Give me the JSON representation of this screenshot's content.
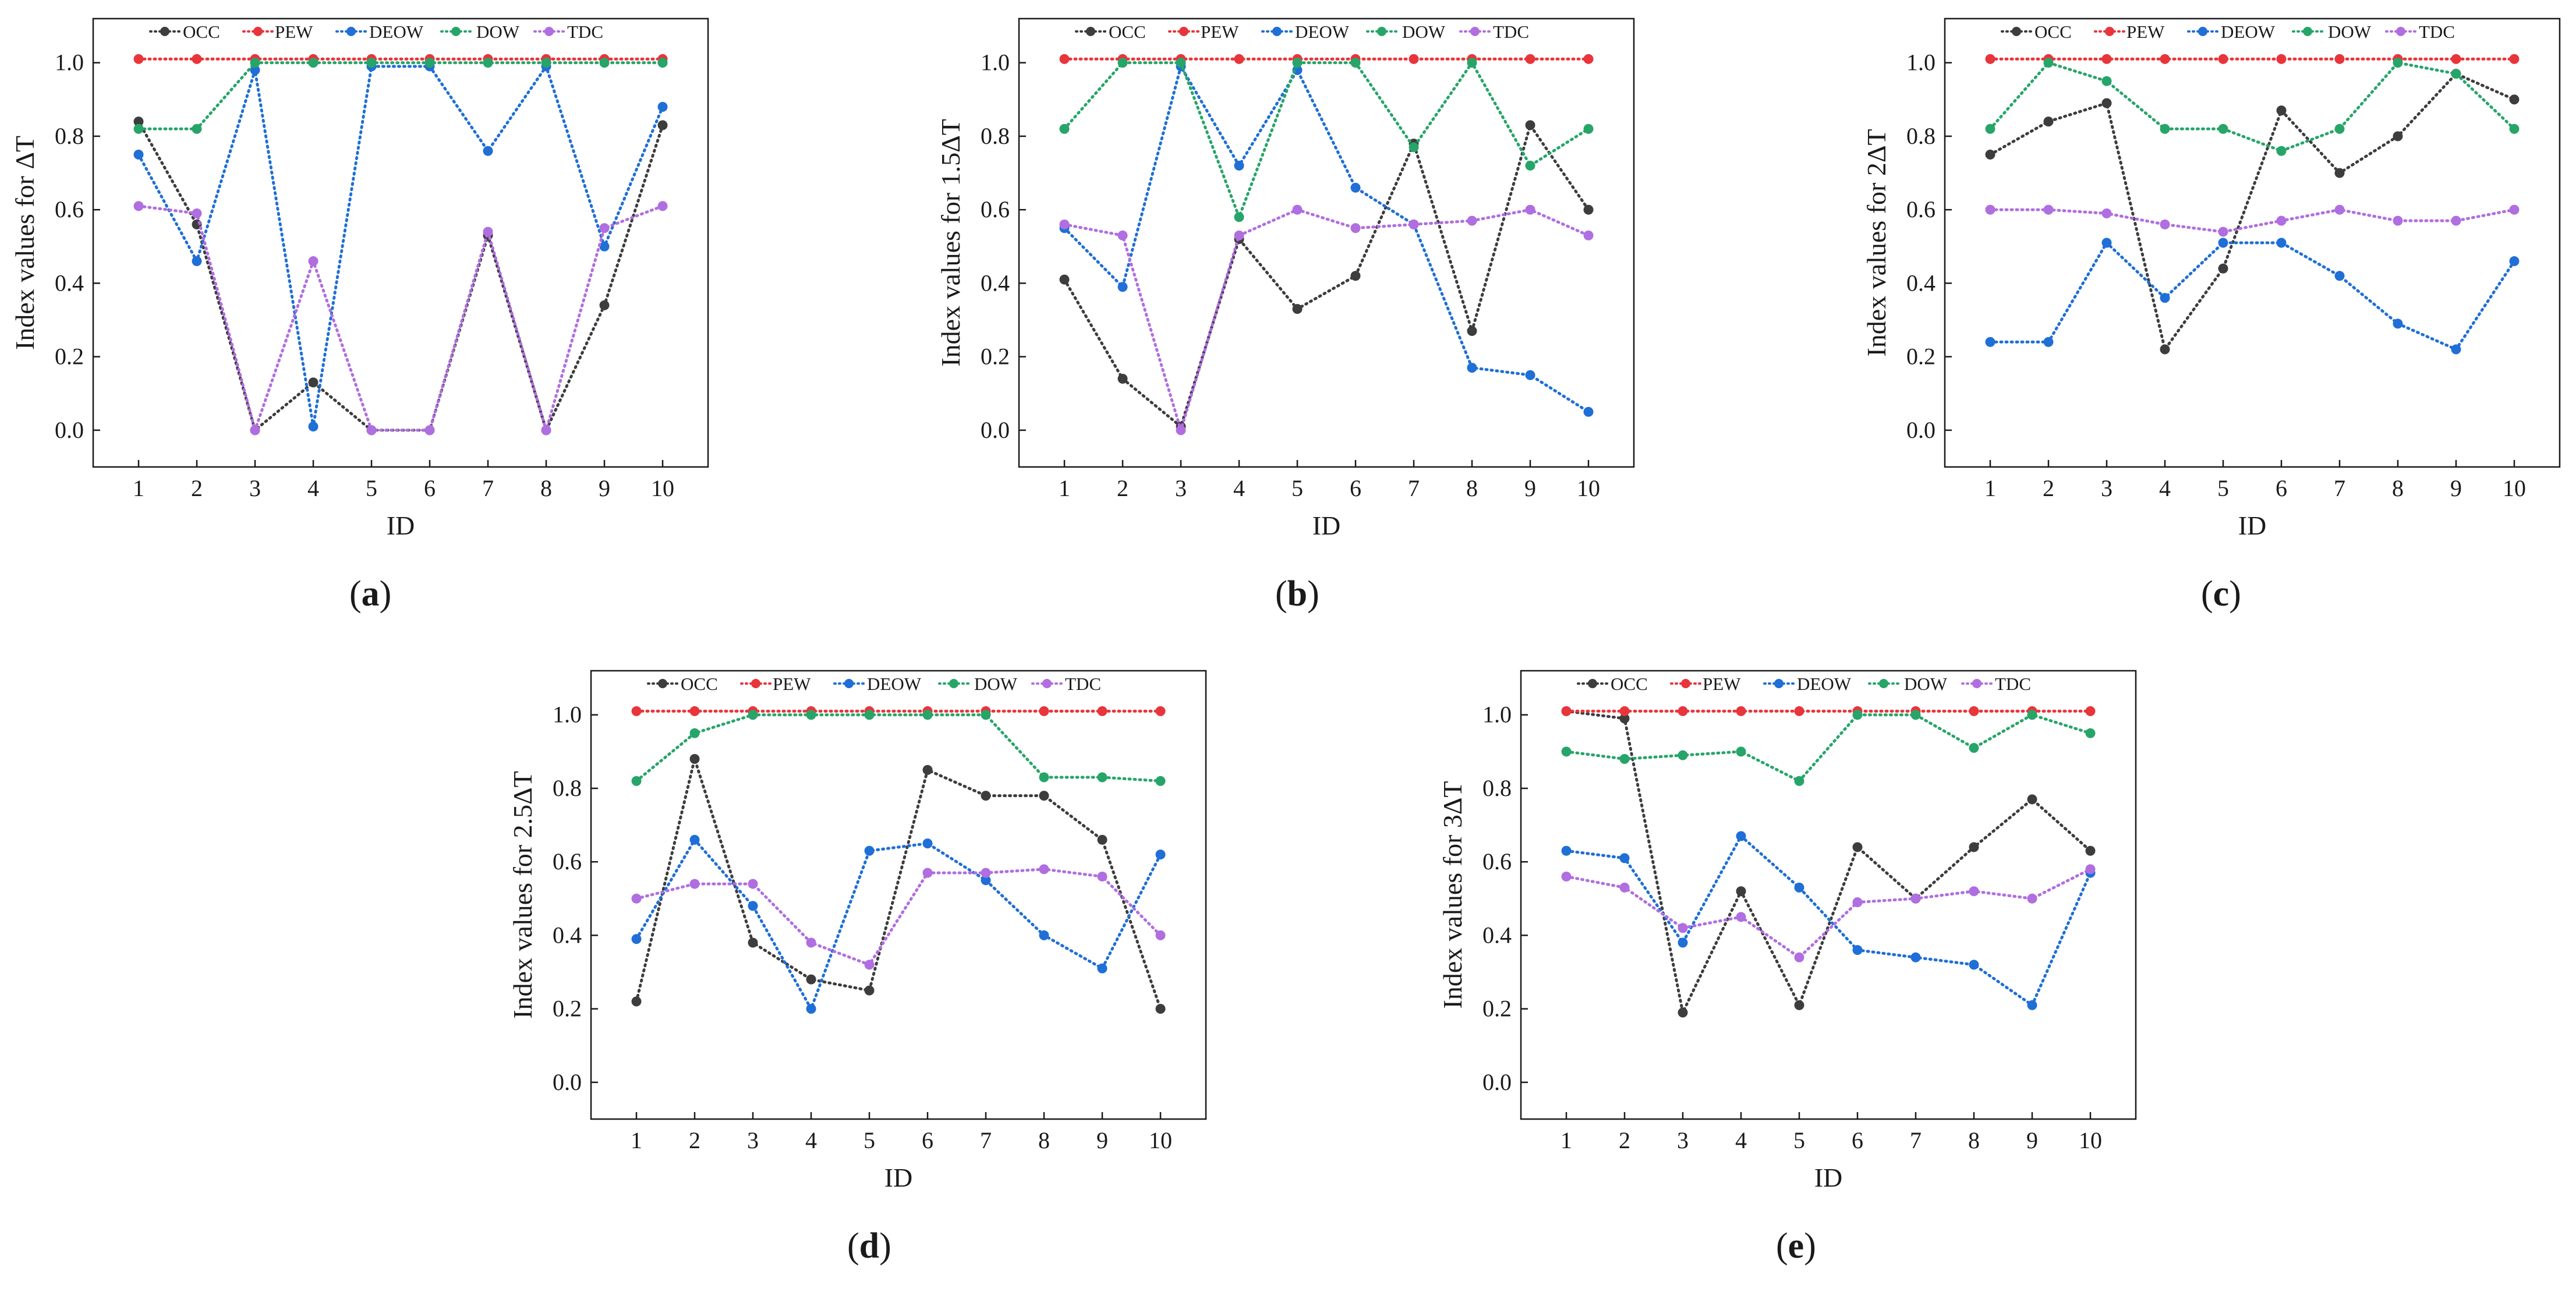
{
  "figure": {
    "panel_labels": [
      "(a)",
      "(b)",
      "(c)",
      "(d)",
      "(e)"
    ],
    "colors": {
      "OCC": "#3d3d3d",
      "PEW": "#e8353b",
      "DEOW": "#1f6fd6",
      "DOW": "#27a569",
      "TDC": "#b06ee0",
      "axis": "#1a1a1a"
    }
  },
  "chart_data": [
    {
      "type": "line",
      "panel_label": "(a)",
      "title": "",
      "xlabel": "ID",
      "ylabel": "Index values for ΔT",
      "categories": [
        "1",
        "2",
        "3",
        "4",
        "5",
        "6",
        "7",
        "8",
        "9",
        "10"
      ],
      "yticks": [
        "0.0",
        "0.2",
        "0.4",
        "0.6",
        "0.8",
        "1.0"
      ],
      "ylim": [
        -0.1,
        1.12
      ],
      "legend": "top",
      "series": [
        {
          "name": "OCC",
          "values": [
            0.84,
            0.56,
            0.0,
            0.13,
            0.0,
            0.0,
            0.53,
            0.0,
            0.34,
            0.83
          ]
        },
        {
          "name": "PEW",
          "values": [
            1.01,
            1.01,
            1.01,
            1.01,
            1.01,
            1.01,
            1.01,
            1.01,
            1.01,
            1.01
          ]
        },
        {
          "name": "DEOW",
          "values": [
            0.75,
            0.46,
            0.98,
            0.01,
            0.99,
            0.99,
            0.76,
            0.99,
            0.5,
            0.88
          ]
        },
        {
          "name": "DOW",
          "values": [
            0.82,
            0.82,
            1.0,
            1.0,
            1.0,
            1.0,
            1.0,
            1.0,
            1.0,
            1.0
          ]
        },
        {
          "name": "TDC",
          "values": [
            0.61,
            0.59,
            0.0,
            0.46,
            0.0,
            0.0,
            0.54,
            0.0,
            0.55,
            0.61
          ]
        }
      ]
    },
    {
      "type": "line",
      "panel_label": "(b)",
      "title": "",
      "xlabel": "ID",
      "ylabel": "Index values for 1.5ΔT",
      "categories": [
        "1",
        "2",
        "3",
        "4",
        "5",
        "6",
        "7",
        "8",
        "9",
        "10"
      ],
      "yticks": [
        "0.0",
        "0.2",
        "0.4",
        "0.6",
        "0.8",
        "1.0"
      ],
      "ylim": [
        -0.1,
        1.12
      ],
      "legend": "top",
      "series": [
        {
          "name": "OCC",
          "values": [
            0.41,
            0.14,
            0.01,
            0.52,
            0.33,
            0.42,
            0.78,
            0.27,
            0.83,
            0.6
          ]
        },
        {
          "name": "PEW",
          "values": [
            1.01,
            1.01,
            1.01,
            1.01,
            1.01,
            1.01,
            1.01,
            1.01,
            1.01,
            1.01
          ]
        },
        {
          "name": "DEOW",
          "values": [
            0.55,
            0.39,
            0.99,
            0.72,
            0.98,
            0.66,
            0.56,
            0.17,
            0.15,
            0.05
          ]
        },
        {
          "name": "DOW",
          "values": [
            0.82,
            1.0,
            1.0,
            0.58,
            1.0,
            1.0,
            0.77,
            1.0,
            0.72,
            0.82
          ]
        },
        {
          "name": "TDC",
          "values": [
            0.56,
            0.53,
            0.0,
            0.53,
            0.6,
            0.55,
            0.56,
            0.57,
            0.6,
            0.53
          ]
        }
      ]
    },
    {
      "type": "line",
      "panel_label": "(c)",
      "title": "",
      "xlabel": "ID",
      "ylabel": "Index values for 2ΔT",
      "categories": [
        "1",
        "2",
        "3",
        "4",
        "5",
        "6",
        "7",
        "8",
        "9",
        "10"
      ],
      "yticks": [
        "0.0",
        "0.2",
        "0.4",
        "0.6",
        "0.8",
        "1.0"
      ],
      "ylim": [
        -0.1,
        1.12
      ],
      "legend": "top",
      "series": [
        {
          "name": "OCC",
          "values": [
            0.75,
            0.84,
            0.89,
            0.22,
            0.44,
            0.87,
            0.7,
            0.8,
            0.97,
            0.9
          ]
        },
        {
          "name": "PEW",
          "values": [
            1.01,
            1.01,
            1.01,
            1.01,
            1.01,
            1.01,
            1.01,
            1.01,
            1.01,
            1.01
          ]
        },
        {
          "name": "DEOW",
          "values": [
            0.24,
            0.24,
            0.51,
            0.36,
            0.51,
            0.51,
            0.42,
            0.29,
            0.22,
            0.46
          ]
        },
        {
          "name": "DOW",
          "values": [
            0.82,
            1.0,
            0.95,
            0.82,
            0.82,
            0.76,
            0.82,
            1.0,
            0.97,
            0.82
          ]
        },
        {
          "name": "TDC",
          "values": [
            0.6,
            0.6,
            0.59,
            0.56,
            0.54,
            0.57,
            0.6,
            0.57,
            0.57,
            0.6
          ]
        }
      ]
    },
    {
      "type": "line",
      "panel_label": "(d)",
      "title": "",
      "xlabel": "ID",
      "ylabel": "Index values for 2.5ΔT",
      "categories": [
        "1",
        "2",
        "3",
        "4",
        "5",
        "6",
        "7",
        "8",
        "9",
        "10"
      ],
      "yticks": [
        "0.0",
        "0.2",
        "0.4",
        "0.6",
        "0.8",
        "1.0"
      ],
      "ylim": [
        -0.1,
        1.12
      ],
      "legend": "top",
      "series": [
        {
          "name": "OCC",
          "values": [
            0.22,
            0.88,
            0.38,
            0.28,
            0.25,
            0.85,
            0.78,
            0.78,
            0.66,
            0.2
          ]
        },
        {
          "name": "PEW",
          "values": [
            1.01,
            1.01,
            1.01,
            1.01,
            1.01,
            1.01,
            1.01,
            1.01,
            1.01,
            1.01
          ]
        },
        {
          "name": "DEOW",
          "values": [
            0.39,
            0.66,
            0.48,
            0.2,
            0.63,
            0.65,
            0.55,
            0.4,
            0.31,
            0.62
          ]
        },
        {
          "name": "DOW",
          "values": [
            0.82,
            0.95,
            1.0,
            1.0,
            1.0,
            1.0,
            1.0,
            0.83,
            0.83,
            0.82
          ]
        },
        {
          "name": "TDC",
          "values": [
            0.5,
            0.54,
            0.54,
            0.38,
            0.32,
            0.57,
            0.57,
            0.58,
            0.56,
            0.4
          ]
        }
      ]
    },
    {
      "type": "line",
      "panel_label": "(e)",
      "title": "",
      "xlabel": "ID",
      "ylabel": "Index values for 3ΔT",
      "categories": [
        "1",
        "2",
        "3",
        "4",
        "5",
        "6",
        "7",
        "8",
        "9",
        "10"
      ],
      "yticks": [
        "0.0",
        "0.2",
        "0.4",
        "0.6",
        "0.8",
        "1.0"
      ],
      "ylim": [
        -0.1,
        1.12
      ],
      "legend": "top",
      "series": [
        {
          "name": "OCC",
          "values": [
            1.01,
            0.99,
            0.19,
            0.52,
            0.21,
            0.64,
            0.5,
            0.64,
            0.77,
            0.63
          ]
        },
        {
          "name": "PEW",
          "values": [
            1.01,
            1.01,
            1.01,
            1.01,
            1.01,
            1.01,
            1.01,
            1.01,
            1.01,
            1.01
          ]
        },
        {
          "name": "DEOW",
          "values": [
            0.63,
            0.61,
            0.38,
            0.67,
            0.53,
            0.36,
            0.34,
            0.32,
            0.21,
            0.57
          ]
        },
        {
          "name": "DOW",
          "values": [
            0.9,
            0.88,
            0.89,
            0.9,
            0.82,
            1.0,
            1.0,
            0.91,
            1.0,
            0.95
          ]
        },
        {
          "name": "TDC",
          "values": [
            0.56,
            0.53,
            0.42,
            0.45,
            0.34,
            0.49,
            0.5,
            0.52,
            0.5,
            0.58
          ]
        }
      ]
    }
  ]
}
